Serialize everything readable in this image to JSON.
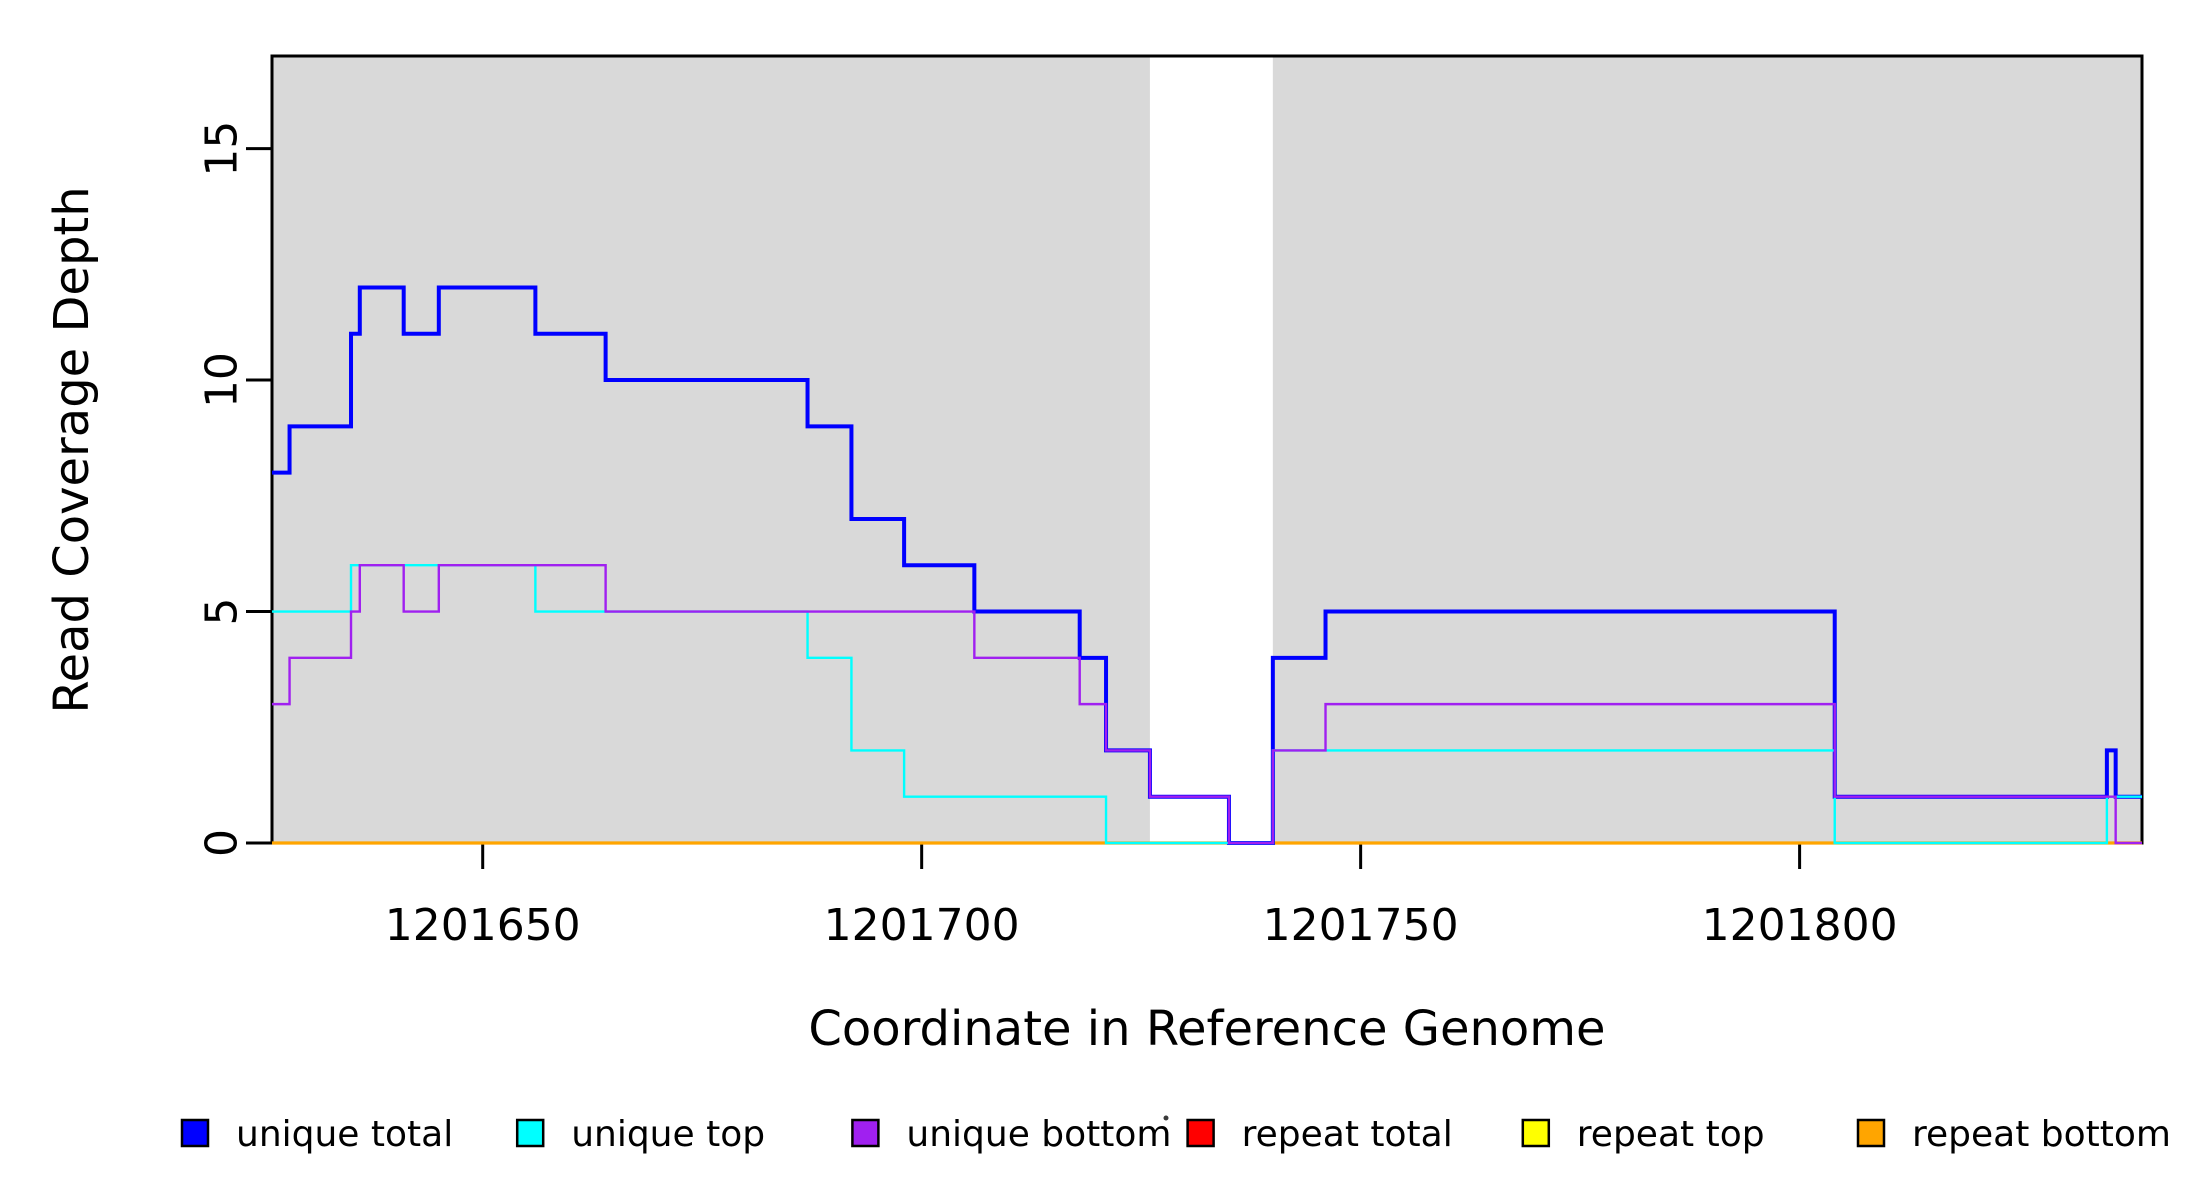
{
  "chart_data": {
    "type": "line",
    "subtype": "step-coverage-plot",
    "title": "",
    "xlabel": "Coordinate in Reference Genome",
    "ylabel": "Read Coverage Depth",
    "xlim": [
      1201626,
      1201839
    ],
    "ylim": [
      0,
      17
    ],
    "x_ticks": [
      1201650,
      1201700,
      1201750,
      1201800
    ],
    "y_ticks": [
      0,
      5,
      10,
      15
    ],
    "grid": "off",
    "shade_color": "#d9d9d9",
    "shaded_regions": [
      {
        "name": "left-shaded-region",
        "x_start": 1201626,
        "x_end": 1201726
      },
      {
        "name": "right-shaded-region",
        "x_start": 1201740,
        "x_end": 1201839
      }
    ],
    "x_end": 1201839,
    "series": [
      {
        "name": "repeat total",
        "color": "#ff0000",
        "line_width": 2.4,
        "steps": [
          [
            1201626,
            0
          ]
        ]
      },
      {
        "name": "repeat top",
        "color": "#ffff00",
        "line_width": 2.4,
        "steps": [
          [
            1201626,
            0
          ]
        ]
      },
      {
        "name": "repeat bottom",
        "color": "#ffa500",
        "line_width": 3.2,
        "steps": [
          [
            1201626,
            0
          ]
        ]
      },
      {
        "name": "unique total",
        "color": "#0000ff",
        "line_width": 4,
        "steps": [
          [
            1201626,
            8
          ],
          [
            1201628,
            9
          ],
          [
            1201635,
            11
          ],
          [
            1201636,
            12
          ],
          [
            1201641,
            11
          ],
          [
            1201645,
            12
          ],
          [
            1201656,
            11
          ],
          [
            1201664,
            10
          ],
          [
            1201687,
            9
          ],
          [
            1201692,
            7
          ],
          [
            1201698,
            6
          ],
          [
            1201706,
            5
          ],
          [
            1201718,
            4
          ],
          [
            1201721,
            2
          ],
          [
            1201726,
            1
          ],
          [
            1201735,
            0
          ],
          [
            1201740,
            4
          ],
          [
            1201746,
            5
          ],
          [
            1201804,
            1
          ],
          [
            1201835,
            2
          ],
          [
            1201836,
            1
          ]
        ]
      },
      {
        "name": "unique top",
        "color": "#00ffff",
        "line_width": 2.4,
        "steps": [
          [
            1201626,
            5
          ],
          [
            1201635,
            6
          ],
          [
            1201656,
            5
          ],
          [
            1201687,
            4
          ],
          [
            1201692,
            2
          ],
          [
            1201698,
            1
          ],
          [
            1201721,
            0
          ],
          [
            1201740,
            2
          ],
          [
            1201804,
            0
          ],
          [
            1201835,
            1
          ]
        ]
      },
      {
        "name": "unique bottom",
        "color": "#a020f0",
        "line_width": 2.4,
        "steps": [
          [
            1201626,
            3
          ],
          [
            1201628,
            4
          ],
          [
            1201635,
            5
          ],
          [
            1201636,
            6
          ],
          [
            1201641,
            5
          ],
          [
            1201645,
            6
          ],
          [
            1201664,
            5
          ],
          [
            1201706,
            4
          ],
          [
            1201718,
            3
          ],
          [
            1201721,
            2
          ],
          [
            1201726,
            1
          ],
          [
            1201735,
            0
          ],
          [
            1201740,
            2
          ],
          [
            1201746,
            3
          ],
          [
            1201804,
            1
          ],
          [
            1201836,
            0
          ]
        ]
      }
    ],
    "legend": {
      "position": "bottom",
      "items": [
        {
          "label": "unique total",
          "color": "#0000ff"
        },
        {
          "label": "unique top",
          "color": "#00ffff"
        },
        {
          "label": "unique bottom",
          "color": "#a020f0"
        },
        {
          "label": "repeat total",
          "color": "#ff0000"
        },
        {
          "label": "repeat top",
          "color": "#ffff00"
        },
        {
          "label": "repeat bottom",
          "color": "#ffa500"
        }
      ]
    },
    "artifacts": {
      "stray_dot": {
        "x": 1166,
        "y": 1118
      }
    }
  }
}
